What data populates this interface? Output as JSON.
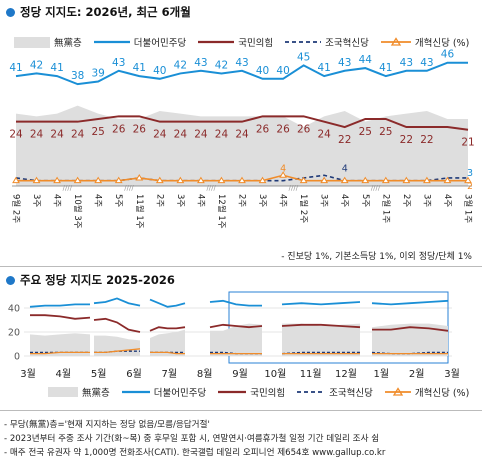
{
  "section1": {
    "title": "정당 지지도: 2026년, 최근 6개월",
    "footnote": "- 진보당 1%, 기본소득당 1%, 이외 정당/단체 1%"
  },
  "section2": {
    "title": "주요 정당 지지도 2025-2026"
  },
  "legend": {
    "none": "無黨층",
    "dem": "더불어민주당",
    "ppp": "국민의힘",
    "rebuild": "조국혁신당",
    "reform": "개혁신당 (%)",
    "reform2": "개혁신당 (%)"
  },
  "colors": {
    "dem": "#1a8fd6",
    "ppp": "#8b2a2a",
    "rebuild": "#1f3a78",
    "reform": "#f08c2a",
    "none": "#dedede",
    "accent": "#1f78c8"
  },
  "notes": [
    "- 무당(無黨)층='현재 지지하는 정당 없음/모름/응답거절'",
    "- 2023년부터 주중 조사 기간(화~목) 중 후무일 포함 시, 연말연시·여름휴가철 일정 기간 데일리 조사 쉼",
    "- 매주 전국 유권자 약 1,000명 전화조사(CATI). 한국갤럽 데일리 오피니언 제654호 www.gallup.co.kr"
  ],
  "chart_data": [
    {
      "type": "line",
      "x": [
        "9월 2주",
        "3주",
        "4주",
        "10월 3주",
        "4주",
        "5주",
        "11월 1주",
        "2주",
        "3주",
        "4주",
        "12월 1주",
        "2주",
        "3주",
        "4주",
        "1월 2주",
        "3주",
        "4주",
        "5주",
        "2월 1주",
        "2주",
        "3주",
        "4주",
        "3월 1주"
      ],
      "x_tick_labels": [
        "9월 2주",
        "3주",
        "4주",
        "10월 3주",
        "4주",
        "5주",
        "11월 1주",
        "2주",
        "3주",
        "4주",
        "12월 1주",
        "2주",
        "3주",
        "4주",
        "1월 2주",
        "3주",
        "4주",
        "5주",
        "2월 1주",
        "2주",
        "3주",
        "4주",
        "3월 1주"
      ],
      "series": [
        {
          "name": "더불어민주당",
          "values": [
            41,
            42,
            41,
            38,
            39,
            43,
            41,
            40,
            42,
            43,
            42,
            43,
            40,
            40,
            45,
            41,
            43,
            44,
            41,
            43,
            43,
            46,
            46
          ]
        },
        {
          "name": "국민의힘",
          "values": [
            24,
            24,
            24,
            24,
            25,
            26,
            26,
            24,
            24,
            24,
            24,
            24,
            26,
            26,
            26,
            24,
            22,
            25,
            25,
            22,
            22,
            22,
            21
          ]
        },
        {
          "name": "조국혁신당",
          "values": [
            3,
            2,
            2,
            2,
            2,
            2,
            3,
            2,
            2,
            2,
            2,
            2,
            2,
            2,
            3,
            4,
            2,
            2,
            2,
            2,
            2,
            3,
            3
          ]
        },
        {
          "name": "개혁신당 (%)",
          "values": [
            2,
            2,
            2,
            2,
            2,
            2,
            3,
            2,
            2,
            2,
            2,
            2,
            2,
            4,
            2,
            2,
            2,
            2,
            2,
            2,
            2,
            2,
            2
          ]
        },
        {
          "name": "無黨층",
          "values": [
            27,
            26,
            27,
            30,
            27,
            25,
            25,
            28,
            27,
            26,
            26,
            26,
            26,
            26,
            22,
            26,
            28,
            24,
            26,
            27,
            28,
            25,
            25
          ]
        }
      ],
      "data_labels": {
        "더불어민주당": [
          41,
          42,
          41,
          38,
          39,
          43,
          41,
          40,
          42,
          43,
          42,
          43,
          40,
          40,
          45,
          41,
          43,
          44,
          41,
          43,
          43,
          46
        ],
        "국민의힘": [
          24,
          24,
          24,
          24,
          25,
          26,
          26,
          24,
          24,
          24,
          24,
          24,
          26,
          26,
          26,
          24,
          22,
          25,
          25,
          22,
          22,
          21
        ],
        "조국혁신당": [
          4,
          4,
          3
        ],
        "개혁신당": [
          2
        ]
      },
      "ylim": [
        0,
        50
      ],
      "grid": false
    },
    {
      "type": "line",
      "x_tick_labels": [
        "3월",
        "4월",
        "5월",
        "6월",
        "7월",
        "8월",
        "9월",
        "10월",
        "11월",
        "12월",
        "1월",
        "2월",
        "3월"
      ],
      "y_tick_labels": [
        "0",
        "20",
        "40"
      ],
      "ylim": [
        0,
        50
      ],
      "series": [
        {
          "name": "더불어민주당",
          "values": [
            41,
            42,
            42,
            43,
            43,
            44,
            45,
            48,
            44,
            42,
            47,
            44,
            41,
            42,
            44,
            45,
            46,
            43,
            42,
            42,
            43,
            44,
            43,
            44,
            45,
            44,
            43,
            44,
            45,
            46
          ]
        },
        {
          "name": "국민의힘",
          "values": [
            34,
            34,
            33,
            31,
            32,
            30,
            31,
            28,
            22,
            20,
            21,
            24,
            23,
            23,
            24,
            24,
            26,
            25,
            24,
            25,
            25,
            26,
            26,
            25,
            24,
            22,
            22,
            24,
            23,
            21
          ]
        },
        {
          "name": "無黨층",
          "values": [
            18,
            17,
            18,
            19,
            18,
            17,
            17,
            16,
            14,
            13,
            15,
            18,
            19,
            20,
            22,
            21,
            21,
            25,
            27,
            26,
            27,
            27,
            25,
            26,
            27,
            24,
            26,
            27,
            27,
            25
          ]
        },
        {
          "name": "조국혁신당",
          "values": [
            3,
            3,
            3,
            3,
            3,
            3,
            3,
            4,
            4,
            4,
            3,
            3,
            3,
            3,
            3,
            3,
            3,
            2,
            2,
            2,
            2,
            3,
            3,
            3,
            3,
            3,
            2,
            2,
            3,
            3
          ]
        },
        {
          "name": "개혁신당",
          "values": [
            2,
            2,
            3,
            3,
            3,
            3,
            3,
            4,
            5,
            6,
            3,
            3,
            3,
            2,
            2,
            2,
            2,
            2,
            2,
            2,
            2,
            2,
            2,
            2,
            2,
            2,
            2,
            2,
            2,
            2
          ]
        }
      ],
      "grid": true
    }
  ]
}
